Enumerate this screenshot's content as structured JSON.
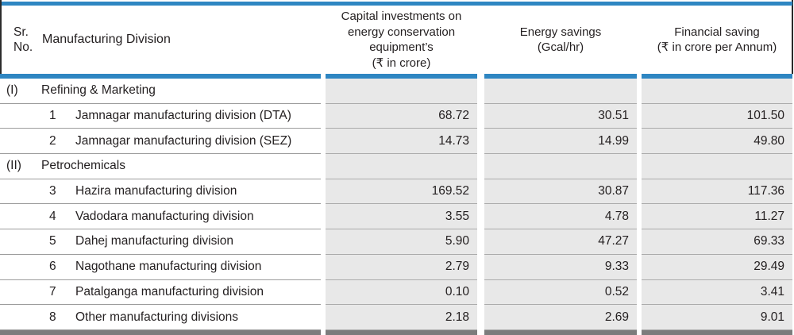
{
  "meta": {
    "accent_blue": "#2e86c2",
    "column_fill_grey": "#e8e8e8",
    "bottom_bar_grey": "#7c7c7c",
    "text_color": "#231f20",
    "currency_symbol": "₹"
  },
  "header": {
    "sr_line1": "Sr.",
    "sr_line2": "No.",
    "division": "Manufacturing Division",
    "capital_line1": "Capital investments on",
    "capital_line2": "energy conservation",
    "capital_line3": "equipment’s",
    "capital_line4": "(₹ in crore)",
    "energy_line1": "Energy savings",
    "energy_line2": "(Gcal/hr)",
    "financial_line1": "Financial saving",
    "financial_line2": "(₹ in crore per Annum)"
  },
  "rows": [
    {
      "type": "section",
      "sr": "(I)",
      "num": "",
      "name": "Refining & Marketing",
      "capital": "",
      "energy": "",
      "financial": ""
    },
    {
      "type": "data",
      "sr": "",
      "num": "1",
      "name": "Jamnagar manufacturing division (DTA)",
      "capital": "68.72",
      "energy": "30.51",
      "financial": "101.50"
    },
    {
      "type": "data",
      "sr": "",
      "num": "2",
      "name": "Jamnagar manufacturing division (SEZ)",
      "capital": "14.73",
      "energy": "14.99",
      "financial": "49.80"
    },
    {
      "type": "section",
      "sr": "(II)",
      "num": "",
      "name": "Petrochemicals",
      "capital": "",
      "energy": "",
      "financial": ""
    },
    {
      "type": "data",
      "sr": "",
      "num": "3",
      "name": "Hazira manufacturing division",
      "capital": "169.52",
      "energy": "30.87",
      "financial": "117.36"
    },
    {
      "type": "data",
      "sr": "",
      "num": "4",
      "name": "Vadodara manufacturing division",
      "capital": "3.55",
      "energy": "4.78",
      "financial": "11.27"
    },
    {
      "type": "data",
      "sr": "",
      "num": "5",
      "name": "Dahej manufacturing division",
      "capital": "5.90",
      "energy": "47.27",
      "financial": "69.33"
    },
    {
      "type": "data",
      "sr": "",
      "num": "6",
      "name": "Nagothane manufacturing division",
      "capital": "2.79",
      "energy": "9.33",
      "financial": "29.49"
    },
    {
      "type": "data",
      "sr": "",
      "num": "7",
      "name": "Patalganga manufacturing division",
      "capital": "0.10",
      "energy": "0.52",
      "financial": "3.41"
    },
    {
      "type": "data",
      "sr": "",
      "num": "8",
      "name": "Other manufacturing divisions",
      "capital": "2.18",
      "energy": "2.69",
      "financial": "9.01"
    }
  ]
}
